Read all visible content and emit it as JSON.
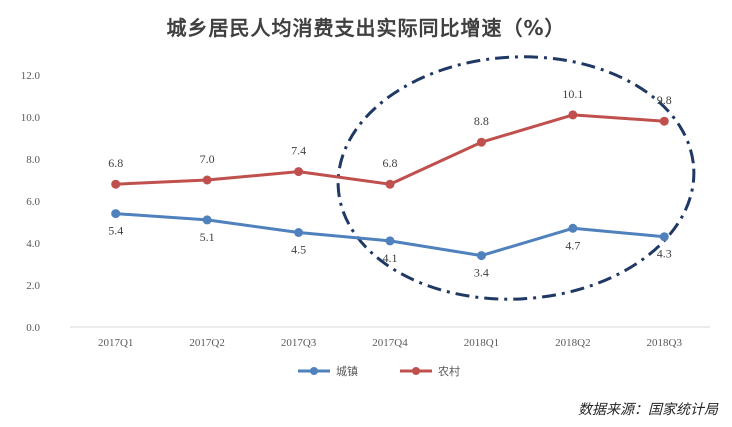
{
  "chart_data": {
    "type": "line",
    "title": "城乡居民人均消费支出实际同比增速（%）",
    "categories": [
      "2017Q1",
      "2017Q2",
      "2017Q3",
      "2017Q4",
      "2018Q1",
      "2018Q2",
      "2018Q3"
    ],
    "series": [
      {
        "name": "城镇",
        "values": [
          5.4,
          5.1,
          4.5,
          4.1,
          3.4,
          4.7,
          4.3
        ],
        "color": "#4F81BD"
      },
      {
        "name": "农村",
        "values": [
          6.8,
          7.0,
          7.4,
          6.8,
          8.8,
          10.1,
          9.8
        ],
        "color": "#C0504D"
      }
    ],
    "ylim": [
      0,
      12
    ],
    "yticks": [
      "0.0",
      "2.0",
      "4.0",
      "6.0",
      "8.0",
      "10.0",
      "12.0"
    ],
    "grid": false,
    "legend": "bottom",
    "annotations": [
      {
        "type": "dashed-ellipse",
        "color": "#1F3864",
        "around": "2017Q4–2018Q3"
      }
    ],
    "source": "数据来源：国家统计局"
  }
}
